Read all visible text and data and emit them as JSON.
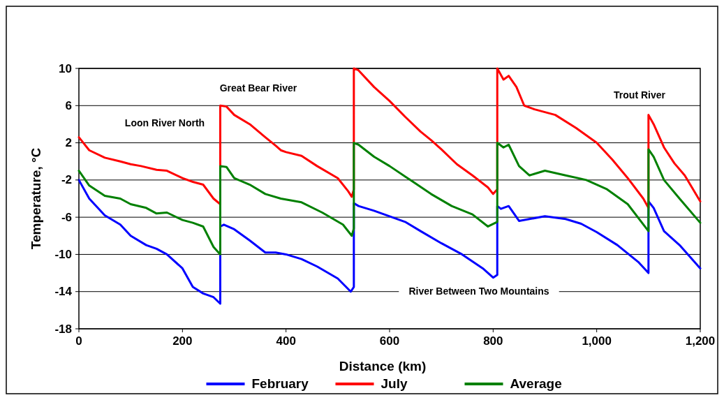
{
  "chart_data": {
    "type": "line",
    "xlabel": "Distance (km)",
    "ylabel": "Temperature, °C",
    "xlim": [
      0,
      1200
    ],
    "xticks": [
      0,
      200,
      400,
      600,
      800,
      {
        "value": 1000,
        "label": "1,000"
      },
      {
        "value": 1200,
        "label": "1,200"
      }
    ],
    "ylim": [
      -18,
      10
    ],
    "yticks": [
      -18,
      -14,
      -10,
      -6,
      -2,
      2,
      6,
      10
    ],
    "grid": "y",
    "legend": "bottom",
    "marker": "none",
    "line_style": "solid",
    "annotations": [
      "Loon River North",
      "Great Bear River",
      "River Between Two Mountains",
      "Trout River"
    ],
    "series": [
      {
        "name": "February",
        "color": "#0000ff",
        "x": [
          0,
          20,
          50,
          80,
          100,
          130,
          150,
          170,
          200,
          220,
          240,
          260,
          273,
          273,
          280,
          300,
          330,
          360,
          380,
          400,
          430,
          460,
          500,
          525,
          531,
          531,
          540,
          570,
          600,
          630,
          660,
          700,
          740,
          780,
          800,
          808,
          808,
          815,
          830,
          850,
          870,
          900,
          940,
          970,
          1000,
          1040,
          1080,
          1100,
          1100,
          1110,
          1130,
          1160,
          1200
        ],
        "values": [
          -2,
          -4,
          -5.8,
          -6.8,
          -8,
          -9,
          -9.4,
          -10,
          -11.5,
          -13.5,
          -14.2,
          -14.6,
          -15.3,
          -7,
          -6.8,
          -7.3,
          -8.5,
          -9.8,
          -9.8,
          -10,
          -10.5,
          -11.3,
          -12.6,
          -14,
          -13.5,
          -4.5,
          -4.8,
          -5.3,
          -5.9,
          -6.5,
          -7.5,
          -8.8,
          -10,
          -11.5,
          -12.5,
          -12.2,
          -4.8,
          -5.1,
          -4.8,
          -6.4,
          -6.2,
          -5.9,
          -6.2,
          -6.7,
          -7.6,
          -9,
          -10.8,
          -12,
          -4.3,
          -5,
          -7.5,
          -9,
          -11.5
        ]
      },
      {
        "name": "July",
        "color": "#ff0000",
        "x": [
          0,
          20,
          50,
          80,
          100,
          120,
          150,
          170,
          200,
          220,
          240,
          260,
          273,
          273,
          285,
          300,
          330,
          360,
          380,
          390,
          400,
          430,
          460,
          500,
          520,
          527,
          531,
          531,
          540,
          570,
          600,
          630,
          660,
          680,
          700,
          730,
          760,
          790,
          800,
          808,
          808,
          820,
          830,
          845,
          860,
          880,
          920,
          960,
          1000,
          1030,
          1060,
          1090,
          1100,
          1100,
          1110,
          1130,
          1150,
          1170,
          1200
        ],
        "values": [
          2.6,
          1.2,
          0.4,
          0,
          -0.3,
          -0.5,
          -0.9,
          -1,
          -1.8,
          -2.2,
          -2.5,
          -4,
          -4.6,
          6,
          5.9,
          5,
          4,
          2.6,
          1.7,
          1.2,
          1,
          0.6,
          -0.5,
          -1.8,
          -3.2,
          -3.8,
          -3,
          10,
          9.8,
          8,
          6.5,
          4.8,
          3.2,
          2.3,
          1.3,
          -0.3,
          -1.5,
          -2.8,
          -3.5,
          -3,
          10,
          8.8,
          9.2,
          8,
          6,
          5.6,
          5,
          3.6,
          2,
          0.2,
          -1.8,
          -4,
          -5,
          5,
          4,
          1.5,
          -0.2,
          -1.5,
          -4.3
        ]
      },
      {
        "name": "Average",
        "color": "#008000",
        "x": [
          0,
          20,
          50,
          80,
          100,
          130,
          150,
          170,
          200,
          220,
          240,
          260,
          273,
          273,
          285,
          300,
          330,
          360,
          390,
          430,
          470,
          510,
          527,
          531,
          531,
          540,
          570,
          600,
          640,
          680,
          720,
          760,
          790,
          808,
          808,
          820,
          830,
          850,
          870,
          900,
          940,
          980,
          1020,
          1060,
          1100,
          1100,
          1110,
          1130,
          1160,
          1200
        ],
        "values": [
          -1,
          -2.6,
          -3.7,
          -4,
          -4.6,
          -5,
          -5.6,
          -5.5,
          -6.3,
          -6.6,
          -7,
          -9.2,
          -10,
          -0.5,
          -0.6,
          -1.8,
          -2.5,
          -3.5,
          -4,
          -4.4,
          -5.5,
          -6.8,
          -8,
          -7.2,
          2,
          1.8,
          0.5,
          -0.5,
          -2,
          -3.5,
          -4.8,
          -5.7,
          -7,
          -6.5,
          2,
          1.5,
          1.8,
          -0.5,
          -1.5,
          -1,
          -1.5,
          -2,
          -3,
          -4.6,
          -7.5,
          1.3,
          0.5,
          -2,
          -4,
          -6.6
        ]
      }
    ]
  }
}
